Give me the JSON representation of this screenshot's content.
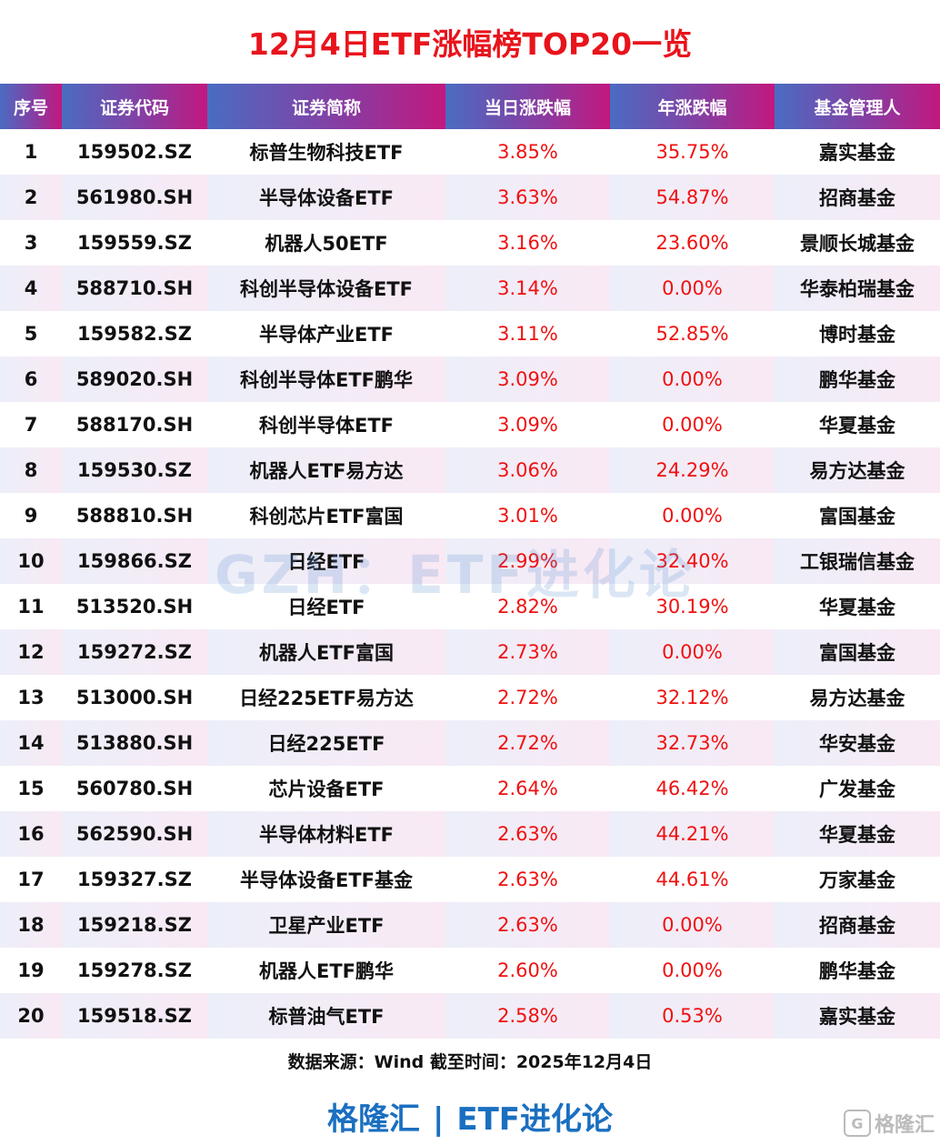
{
  "title": "12月4日ETF涨幅榜TOP20一览",
  "columns": [
    "序号",
    "证券代码",
    "证券简称",
    "当日涨跌幅",
    "年涨跌幅",
    "基金管理人"
  ],
  "rows": [
    [
      "1",
      "159502.SZ",
      "标普生物科技ETF",
      "3.85%",
      "35.75%",
      "嘉实基金"
    ],
    [
      "2",
      "561980.SH",
      "半导体设备ETF",
      "3.63%",
      "54.87%",
      "招商基金"
    ],
    [
      "3",
      "159559.SZ",
      "机器人50ETF",
      "3.16%",
      "23.60%",
      "景顺长城基金"
    ],
    [
      "4",
      "588710.SH",
      "科创半导体设备ETF",
      "3.14%",
      "0.00%",
      "华泰柏瑞基金"
    ],
    [
      "5",
      "159582.SZ",
      "半导体产业ETF",
      "3.11%",
      "52.85%",
      "博时基金"
    ],
    [
      "6",
      "589020.SH",
      "科创半导体ETF鹏华",
      "3.09%",
      "0.00%",
      "鹏华基金"
    ],
    [
      "7",
      "588170.SH",
      "科创半导体ETF",
      "3.09%",
      "0.00%",
      "华夏基金"
    ],
    [
      "8",
      "159530.SZ",
      "机器人ETF易方达",
      "3.06%",
      "24.29%",
      "易方达基金"
    ],
    [
      "9",
      "588810.SH",
      "科创芯片ETF富国",
      "3.01%",
      "0.00%",
      "富国基金"
    ],
    [
      "10",
      "159866.SZ",
      "日经ETF",
      "2.99%",
      "32.40%",
      "工银瑞信基金"
    ],
    [
      "11",
      "513520.SH",
      "日经ETF",
      "2.82%",
      "30.19%",
      "华夏基金"
    ],
    [
      "12",
      "159272.SZ",
      "机器人ETF富国",
      "2.73%",
      "0.00%",
      "富国基金"
    ],
    [
      "13",
      "513000.SH",
      "日经225ETF易方达",
      "2.72%",
      "32.12%",
      "易方达基金"
    ],
    [
      "14",
      "513880.SH",
      "日经225ETF",
      "2.72%",
      "32.73%",
      "华安基金"
    ],
    [
      "15",
      "560780.SH",
      "芯片设备ETF",
      "2.64%",
      "46.42%",
      "广发基金"
    ],
    [
      "16",
      "562590.SH",
      "半导体材料ETF",
      "2.63%",
      "44.21%",
      "华夏基金"
    ],
    [
      "17",
      "159327.SZ",
      "半导体设备ETF基金",
      "2.63%",
      "44.61%",
      "万家基金"
    ],
    [
      "18",
      "159218.SZ",
      "卫星产业ETF",
      "2.63%",
      "0.00%",
      "招商基金"
    ],
    [
      "19",
      "159278.SZ",
      "机器人ETF鹏华",
      "2.60%",
      "0.00%",
      "鹏华基金"
    ],
    [
      "20",
      "159518.SZ",
      "标普油气ETF",
      "2.58%",
      "0.53%",
      "嘉实基金"
    ]
  ],
  "watermark": "GZH：ETF进化论",
  "source": "数据来源：Wind 截至时间：2025年12月4日",
  "brand": {
    "left": "格隆汇",
    "separator": "|",
    "right": "ETF进化论"
  },
  "logo": {
    "text": "格隆汇",
    "icon": "g-logo-icon"
  },
  "colors": {
    "title": "#e8141c",
    "change": "#f01010",
    "brand": "#1a6fc0",
    "header_start": "#4a6cc2",
    "header_end": "#c2187e"
  }
}
